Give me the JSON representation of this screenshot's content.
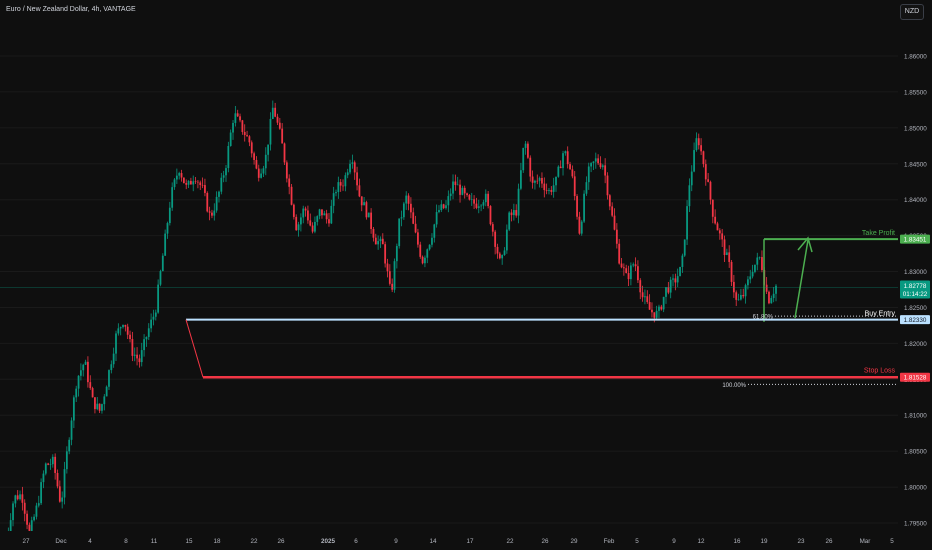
{
  "header": {
    "title": "Euro / New Zealand Dollar, 4h, VANTAGE",
    "currency_button": "NZD"
  },
  "chart_data": {
    "type": "candlestick",
    "y_ticks": [
      1.86,
      1.855,
      1.85,
      1.845,
      1.84,
      1.835,
      1.83,
      1.825,
      1.82,
      1.815,
      1.81,
      1.805,
      1.8,
      1.795
    ],
    "y_tick_labels": [
      "1.86000",
      "1.85500",
      "1.85000",
      "1.84500",
      "1.84000",
      "1.83500",
      "1.83000",
      "1.82500",
      "1.82000",
      "1.81500",
      "1.81000",
      "1.80500",
      "1.80000",
      "1.79500"
    ],
    "x_ticks": [
      {
        "label": "27",
        "bold": false
      },
      {
        "label": "Dec",
        "bold": false
      },
      {
        "label": "4",
        "bold": false
      },
      {
        "label": "8",
        "bold": false
      },
      {
        "label": "11",
        "bold": false
      },
      {
        "label": "15",
        "bold": false
      },
      {
        "label": "18",
        "bold": false
      },
      {
        "label": "22",
        "bold": false
      },
      {
        "label": "26",
        "bold": false
      },
      {
        "label": "2025",
        "bold": true
      },
      {
        "label": "6",
        "bold": false
      },
      {
        "label": "9",
        "bold": false
      },
      {
        "label": "14",
        "bold": false
      },
      {
        "label": "17",
        "bold": false
      },
      {
        "label": "22",
        "bold": false
      },
      {
        "label": "26",
        "bold": false
      },
      {
        "label": "29",
        "bold": false
      },
      {
        "label": "Feb",
        "bold": false
      },
      {
        "label": "5",
        "bold": false
      },
      {
        "label": "9",
        "bold": false
      },
      {
        "label": "12",
        "bold": false
      },
      {
        "label": "16",
        "bold": false
      },
      {
        "label": "19",
        "bold": false
      },
      {
        "label": "23",
        "bold": false
      },
      {
        "label": "26",
        "bold": false
      },
      {
        "label": "Mar",
        "bold": false
      },
      {
        "label": "5",
        "bold": false
      }
    ],
    "price_path": [
      1.7925,
      1.7985,
      1.799,
      1.7935,
      1.7975,
      1.803,
      1.8035,
      1.7975,
      1.807,
      1.815,
      1.8175,
      1.812,
      1.8105,
      1.8155,
      1.821,
      1.8235,
      1.819,
      1.8175,
      1.8215,
      1.8245,
      1.8325,
      1.8405,
      1.8445,
      1.8415,
      1.8435,
      1.8415,
      1.8375,
      1.8405,
      1.845,
      1.852,
      1.85,
      1.848,
      1.8435,
      1.8455,
      1.853,
      1.8485,
      1.842,
      1.836,
      1.839,
      1.8355,
      1.8385,
      1.837,
      1.8415,
      1.8425,
      1.8465,
      1.8405,
      1.838,
      1.8345,
      1.8335,
      1.8265,
      1.8365,
      1.8405,
      1.8355,
      1.8315,
      1.8345,
      1.8385,
      1.839,
      1.8425,
      1.841,
      1.8395,
      1.8395,
      1.8405,
      1.8355,
      1.8305,
      1.8375,
      1.8385,
      1.8485,
      1.842,
      1.843,
      1.841,
      1.8425,
      1.847,
      1.8435,
      1.8355,
      1.8435,
      1.8455,
      1.845,
      1.8385,
      1.832,
      1.829,
      1.8315,
      1.8265,
      1.8245,
      1.824,
      1.8275,
      1.8285,
      1.8305,
      1.8425,
      1.849,
      1.844,
      1.838,
      1.8345,
      1.831,
      1.8255,
      1.827,
      1.8305,
      1.832,
      1.826,
      1.828
    ],
    "candle_count": 330,
    "current_price": "1.82778",
    "countdown": "01:14:22",
    "levels": [
      {
        "name": "Take Profit",
        "label": "Take Profit",
        "value": 1.83451,
        "price": "1.83451",
        "color": "#4caf50"
      },
      {
        "name": "Buy Entry",
        "label": "Buy Entry",
        "value": 1.8233,
        "price": "1.82330",
        "color": "#ffffff"
      },
      {
        "name": "Stop Loss",
        "label": "Stop Loss",
        "value": 1.81528,
        "price": "1.81528",
        "color": "#f23645"
      }
    ],
    "fib_levels": [
      {
        "label": "61.80%",
        "value": 1.8238
      },
      {
        "label": "100.00%",
        "value": 1.8143
      }
    ],
    "colors": {
      "up": "#089981",
      "down": "#f23645",
      "entry_line": "#bbe1ff",
      "stop_line": "#f23645",
      "tp_line": "#4caf50",
      "grid": "#1a1a1a"
    }
  }
}
